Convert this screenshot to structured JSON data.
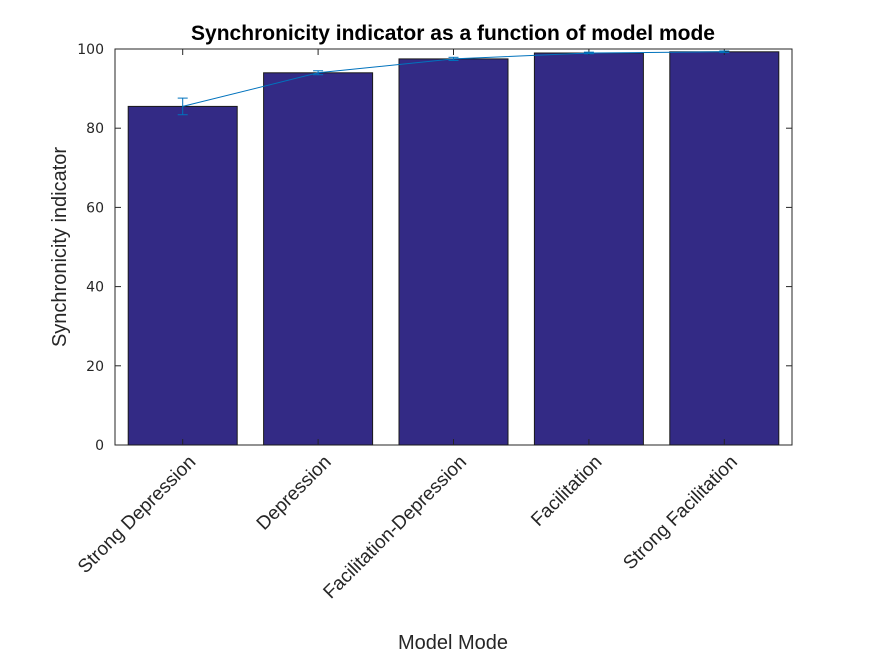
{
  "chart_data": {
    "type": "bar",
    "title": "Synchronicity indicator as a function of model mode",
    "xlabel": "Model Mode",
    "ylabel": "Synchronicity indicator",
    "categories": [
      "Strong Depression",
      "Depression",
      "Facilitation-Depression",
      "Facilitation",
      "Strong Facilitation"
    ],
    "values": [
      85.5,
      94,
      97.5,
      99,
      99.3
    ],
    "line_values": [
      85.5,
      94,
      97.5,
      99,
      99.3
    ],
    "error": [
      2.1,
      0.5,
      0.4,
      0.2,
      0.2
    ],
    "ylim": [
      0,
      100
    ],
    "yticks": [
      0,
      20,
      40,
      60,
      80,
      100
    ],
    "grid": false,
    "bar_color": "#332a85",
    "line_color": "#0072bd"
  }
}
